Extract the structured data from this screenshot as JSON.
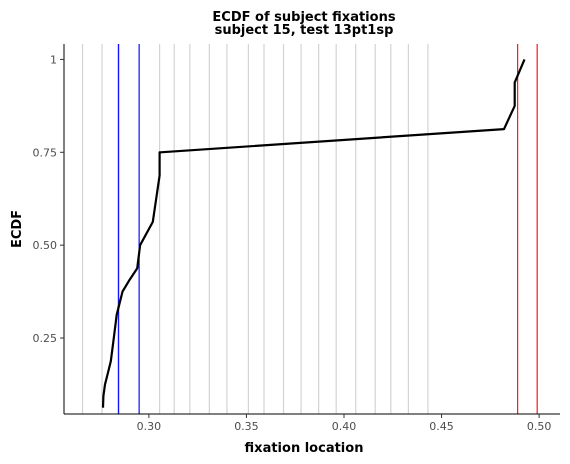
{
  "chart_data": {
    "type": "line",
    "title": "ECDF of subject fixations",
    "subtitle": "subject 15, test 13pt1sp",
    "xlabel": "fixation location",
    "ylabel": "ECDF",
    "xlim": [
      0.2565,
      0.5107
    ],
    "ylim": [
      0.0455,
      1.0415
    ],
    "x_ticks": [
      {
        "value": 0.3,
        "label": "0.30"
      },
      {
        "value": 0.35,
        "label": "0.35"
      },
      {
        "value": 0.4,
        "label": "0.40"
      },
      {
        "value": 0.45,
        "label": "0.45"
      },
      {
        "value": 0.5,
        "label": "0.50"
      }
    ],
    "y_ticks": [
      {
        "value": 0.25,
        "label": "0.25"
      },
      {
        "value": 0.5,
        "label": "0.50"
      },
      {
        "value": 0.75,
        "label": "0.75"
      },
      {
        "value": 1.0,
        "label": "1"
      }
    ],
    "grid_vertical_lines": [
      0.266,
      0.276,
      0.284,
      0.295,
      0.3055,
      0.313,
      0.321,
      0.331,
      0.34,
      0.351,
      0.359,
      0.369,
      0.378,
      0.387,
      0.396,
      0.406,
      0.416,
      0.424,
      0.433,
      0.443
    ],
    "reference_lines": [
      {
        "x": 0.2845,
        "color": "#0000ff"
      },
      {
        "x": 0.295,
        "color": "#0000ff"
      },
      {
        "x": 0.489,
        "color": "#ff0000"
      },
      {
        "x": 0.499,
        "color": "#ff0000"
      }
    ],
    "series": [
      {
        "color": "#000000",
        "x": [
          0.2765,
          0.2767,
          0.2775,
          0.279,
          0.2805,
          0.282,
          0.2835,
          0.2865,
          0.29,
          0.294,
          0.2955,
          0.302,
          0.3055,
          0.3055,
          0.306,
          0.482,
          0.4875,
          0.4875,
          0.4925
        ],
        "y": [
          0.0625,
          0.094,
          0.125,
          0.156,
          0.1875,
          0.25,
          0.3125,
          0.375,
          0.406,
          0.4375,
          0.5,
          0.5625,
          0.6875,
          0.75,
          0.75,
          0.8125,
          0.875,
          0.9375,
          1.0
        ]
      }
    ]
  }
}
